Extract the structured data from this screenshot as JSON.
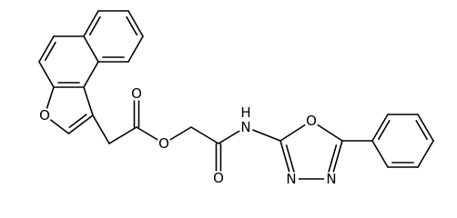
{
  "atom_labels": [
    "O",
    "O",
    "O",
    "O",
    "N",
    "H",
    "O",
    "N",
    "N"
  ]
}
